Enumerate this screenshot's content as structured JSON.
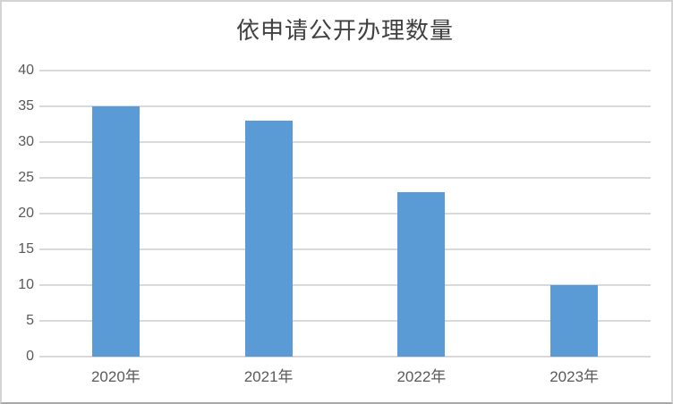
{
  "chart_data": {
    "type": "bar",
    "title": "依申请公开办理数量",
    "categories": [
      "2020年",
      "2021年",
      "2022年",
      "2023年"
    ],
    "values": [
      35,
      33,
      23,
      10
    ],
    "xlabel": "",
    "ylabel": "",
    "ylim": [
      0,
      40
    ],
    "ytick_step": 5,
    "yticks": [
      0,
      5,
      10,
      15,
      20,
      25,
      30,
      35,
      40
    ],
    "grid": "horizontal",
    "legend": "none",
    "bar_color": "#5B9BD5",
    "gridline_color": "#D9D9D9",
    "axis_text_color": "#595959",
    "title_color": "#404040",
    "background": "#FFFFFF"
  }
}
